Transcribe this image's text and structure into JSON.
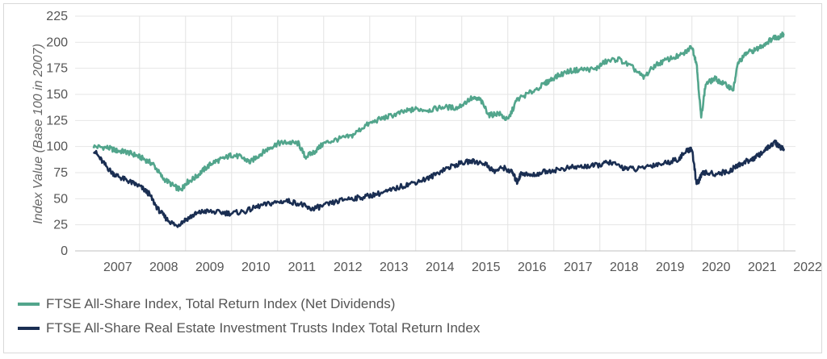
{
  "chart_data": {
    "type": "line",
    "title": "",
    "xlabel": "",
    "ylabel": "Index Value (Base 100 in 2007)",
    "ylim": [
      0,
      225
    ],
    "yticks": [
      0,
      25,
      50,
      75,
      100,
      125,
      150,
      175,
      200,
      225
    ],
    "xlim": [
      2007,
      2022
    ],
    "xticks": [
      2007,
      2008,
      2009,
      2010,
      2011,
      2012,
      2013,
      2014,
      2015,
      2016,
      2017,
      2018,
      2019,
      2020,
      2021,
      2022
    ],
    "grid": true,
    "legend_position": "bottom-left",
    "series": [
      {
        "name": "FTSE All-Share Index, Total Return Index (Net Dividends)",
        "color": "#52a58c",
        "x": [
          2007.0,
          2007.3,
          2007.5,
          2007.7,
          2007.9,
          2008.1,
          2008.3,
          2008.5,
          2008.75,
          2008.9,
          2009.0,
          2009.2,
          2009.4,
          2009.6,
          2009.8,
          2010.0,
          2010.2,
          2010.4,
          2010.6,
          2010.8,
          2011.0,
          2011.2,
          2011.45,
          2011.6,
          2011.8,
          2012.0,
          2012.3,
          2012.6,
          2012.9,
          2013.2,
          2013.5,
          2013.8,
          2014.0,
          2014.3,
          2014.6,
          2014.9,
          2015.2,
          2015.4,
          2015.6,
          2015.8,
          2016.0,
          2016.2,
          2016.5,
          2016.8,
          2017.0,
          2017.3,
          2017.6,
          2017.9,
          2018.1,
          2018.4,
          2018.7,
          2018.95,
          2019.2,
          2019.5,
          2019.8,
          2020.0,
          2020.1,
          2020.2,
          2020.3,
          2020.5,
          2020.7,
          2020.9,
          2021.0,
          2021.2,
          2021.4,
          2021.6,
          2021.8,
          2021.9,
          2022.0
        ],
        "values": [
          100,
          99,
          96,
          95,
          92,
          88,
          83,
          70,
          62,
          58,
          65,
          70,
          78,
          85,
          88,
          92,
          90,
          85,
          92,
          98,
          103,
          104,
          103,
          90,
          95,
          103,
          107,
          110,
          120,
          126,
          130,
          134,
          136,
          135,
          138,
          137,
          146,
          145,
          130,
          132,
          125,
          145,
          152,
          160,
          166,
          172,
          174,
          174,
          181,
          184,
          176,
          166,
          178,
          184,
          188,
          196,
          180,
          128,
          160,
          165,
          160,
          155,
          180,
          190,
          193,
          199,
          205,
          205,
          208
        ]
      },
      {
        "name": "FTSE All-Share Real Estate Investment Trusts Index Total Return Index",
        "color": "#1a2e52",
        "x": [
          2007.0,
          2007.2,
          2007.4,
          2007.6,
          2007.8,
          2008.0,
          2008.2,
          2008.4,
          2008.6,
          2008.8,
          2009.0,
          2009.2,
          2009.4,
          2009.7,
          2010.0,
          2010.3,
          2010.6,
          2010.9,
          2011.2,
          2011.5,
          2011.7,
          2011.9,
          2012.2,
          2012.5,
          2012.8,
          2013.1,
          2013.4,
          2013.7,
          2014.0,
          2014.3,
          2014.6,
          2014.9,
          2015.2,
          2015.5,
          2015.7,
          2015.9,
          2016.1,
          2016.2,
          2016.3,
          2016.5,
          2016.8,
          2017.1,
          2017.4,
          2017.7,
          2017.95,
          2018.2,
          2018.5,
          2018.8,
          2019.1,
          2019.4,
          2019.7,
          2019.9,
          2020.0,
          2020.1,
          2020.25,
          2020.5,
          2020.8,
          2021.0,
          2021.2,
          2021.4,
          2021.6,
          2021.8,
          2021.9,
          2022.0
        ],
        "values": [
          97,
          85,
          75,
          70,
          66,
          62,
          55,
          40,
          30,
          24,
          30,
          35,
          38,
          37,
          36,
          38,
          43,
          46,
          48,
          45,
          40,
          42,
          46,
          50,
          51,
          54,
          57,
          62,
          66,
          70,
          78,
          83,
          86,
          84,
          76,
          80,
          75,
          66,
          75,
          72,
          76,
          78,
          80,
          81,
          82,
          85,
          80,
          78,
          82,
          84,
          88,
          96,
          98,
          64,
          75,
          74,
          76,
          82,
          86,
          90,
          97,
          104,
          100,
          98
        ]
      }
    ]
  }
}
